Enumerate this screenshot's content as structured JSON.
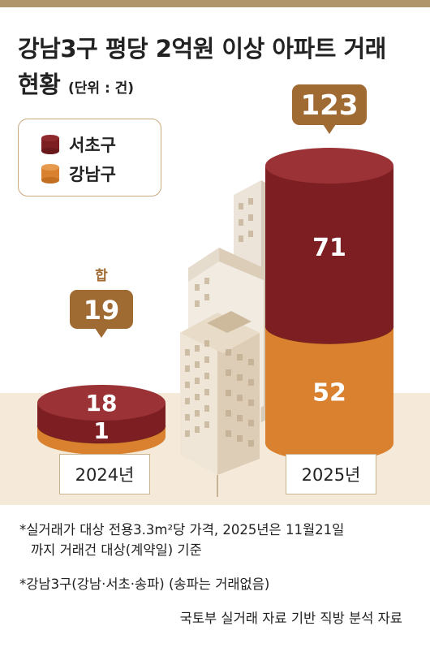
{
  "title_line1": "강남3구 평당 2억원 이상 아파트 거래",
  "title_line2": "현황",
  "unit": "(단위 : 건)",
  "legend": [
    {
      "label": "서초구",
      "color": "#7d1f22"
    },
    {
      "label": "강남구",
      "color": "#d9812e"
    }
  ],
  "total_label": "합",
  "chart_data": {
    "type": "bar",
    "stacked": true,
    "categories": [
      "2024년",
      "2025년"
    ],
    "series": [
      {
        "name": "서초구",
        "values": [
          18,
          71
        ]
      },
      {
        "name": "강남구",
        "values": [
          1,
          52
        ]
      }
    ],
    "totals": [
      19,
      123
    ],
    "title": "강남3구 평당 2억원 이상 아파트 거래 현황",
    "unit": "건"
  },
  "notes": {
    "note1_line1": "*실거래가 대상 전용3.3m²당 가격, 2025년은 11월21일",
    "note1_line2": "까지 거래건 대상(계약일) 기준",
    "note2": "*강남3구(강남·서초·송파) (송파는 거래없음)"
  },
  "source": "국토부 실거래 자료 기반 직방 분석 자료",
  "colors": {
    "seocho": "#7d1f22",
    "gangnam": "#d9812e",
    "callout": "#a06a33",
    "accent_bar": "#b0946a",
    "ground": "#f5ead9"
  }
}
